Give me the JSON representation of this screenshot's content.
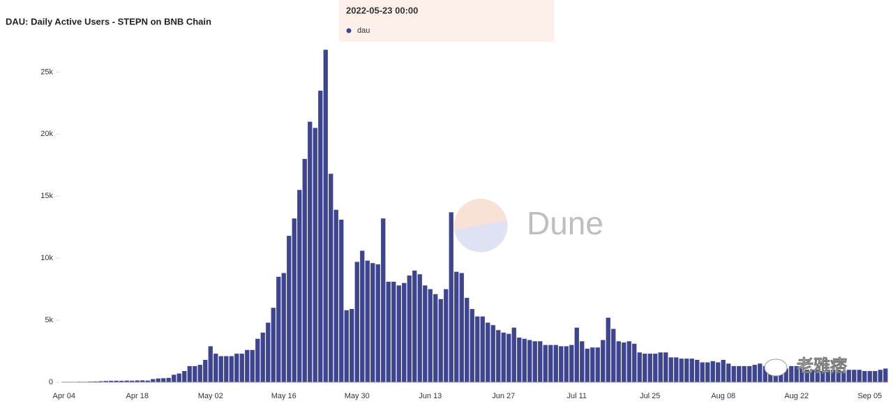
{
  "chart_data": {
    "type": "bar",
    "title": "DAU: Daily Active Users - STEPN on BNB Chain",
    "tooltip": {
      "date": "2022-05-23 00:00",
      "series": "dau"
    },
    "watermark": "Dune",
    "credit": "老雅痞",
    "color": "#3d4593",
    "categories": [
      "Apr 04",
      null,
      null,
      null,
      null,
      null,
      null,
      null,
      null,
      null,
      null,
      null,
      null,
      null,
      "Apr 18",
      null,
      null,
      null,
      null,
      null,
      null,
      null,
      null,
      null,
      null,
      null,
      null,
      null,
      "May 02",
      null,
      null,
      null,
      null,
      null,
      null,
      null,
      null,
      null,
      null,
      null,
      null,
      null,
      "May 16",
      null,
      null,
      null,
      null,
      null,
      null,
      null,
      null,
      null,
      null,
      null,
      null,
      null,
      "May 30",
      null,
      null,
      null,
      null,
      null,
      null,
      null,
      null,
      null,
      null,
      null,
      null,
      null,
      "Jun 13",
      null,
      null,
      null,
      null,
      null,
      null,
      null,
      null,
      null,
      null,
      null,
      null,
      null,
      "Jun 27",
      null,
      null,
      null,
      null,
      null,
      null,
      null,
      null,
      null,
      null,
      null,
      null,
      null,
      "Jul 11",
      null,
      null,
      null,
      null,
      null,
      null,
      null,
      null,
      null,
      null,
      null,
      null,
      null,
      "Jul 25",
      null,
      null,
      null,
      null,
      null,
      null,
      null,
      null,
      null,
      null,
      null,
      null,
      null,
      "Aug 08",
      null,
      null,
      null,
      null,
      null,
      null,
      null,
      null,
      null,
      null,
      null,
      null,
      null,
      "Aug 22",
      null,
      null,
      null,
      null,
      null,
      null,
      null,
      null,
      null,
      null,
      null,
      null,
      null,
      "Sep 05",
      null,
      null,
      null
    ],
    "values": [
      20,
      30,
      25,
      40,
      35,
      50,
      60,
      80,
      100,
      110,
      120,
      110,
      130,
      120,
      140,
      150,
      130,
      250,
      300,
      320,
      350,
      600,
      700,
      900,
      1300,
      1300,
      1400,
      1800,
      2900,
      2300,
      2100,
      2100,
      2100,
      2300,
      2300,
      2600,
      2600,
      3500,
      4000,
      4800,
      6000,
      8500,
      8800,
      11800,
      13200,
      15500,
      18000,
      21000,
      20500,
      23500,
      26800,
      16800,
      13900,
      13100,
      5800,
      5900,
      9700,
      10600,
      9800,
      9600,
      9500,
      13200,
      8100,
      8100,
      7800,
      8000,
      8600,
      9000,
      8700,
      7800,
      7500,
      7100,
      6700,
      7500,
      13700,
      8900,
      8800,
      6800,
      5900,
      5300,
      5300,
      4800,
      4600,
      4200,
      4000,
      3900,
      4400,
      3600,
      3500,
      3400,
      3300,
      3300,
      3000,
      3000,
      3000,
      2900,
      2900,
      3000,
      4400,
      3300,
      2700,
      2800,
      2800,
      3400,
      5200,
      4300,
      3300,
      3200,
      3300,
      3100,
      2400,
      2300,
      2300,
      2300,
      2400,
      2400,
      2000,
      2000,
      1900,
      1900,
      1900,
      1800,
      1600,
      1600,
      1700,
      1600,
      1800,
      1500,
      1300,
      1300,
      1300,
      1300,
      1400,
      1500,
      1300,
      1200,
      1100,
      1000,
      1100,
      1300,
      1300,
      1100,
      1000,
      1000,
      1000,
      900,
      1000,
      1000,
      1000,
      900,
      1000,
      1000,
      1000,
      900,
      900,
      900,
      1000,
      1100
    ],
    "ylim": [
      0,
      28000
    ],
    "yticks": [
      0,
      {
        "value": 5000,
        "label": "5k"
      },
      {
        "value": 10000,
        "label": "10k"
      },
      {
        "value": 15000,
        "label": "15k"
      },
      {
        "value": 20000,
        "label": "20k"
      },
      {
        "value": 25000,
        "label": "25k"
      }
    ]
  }
}
